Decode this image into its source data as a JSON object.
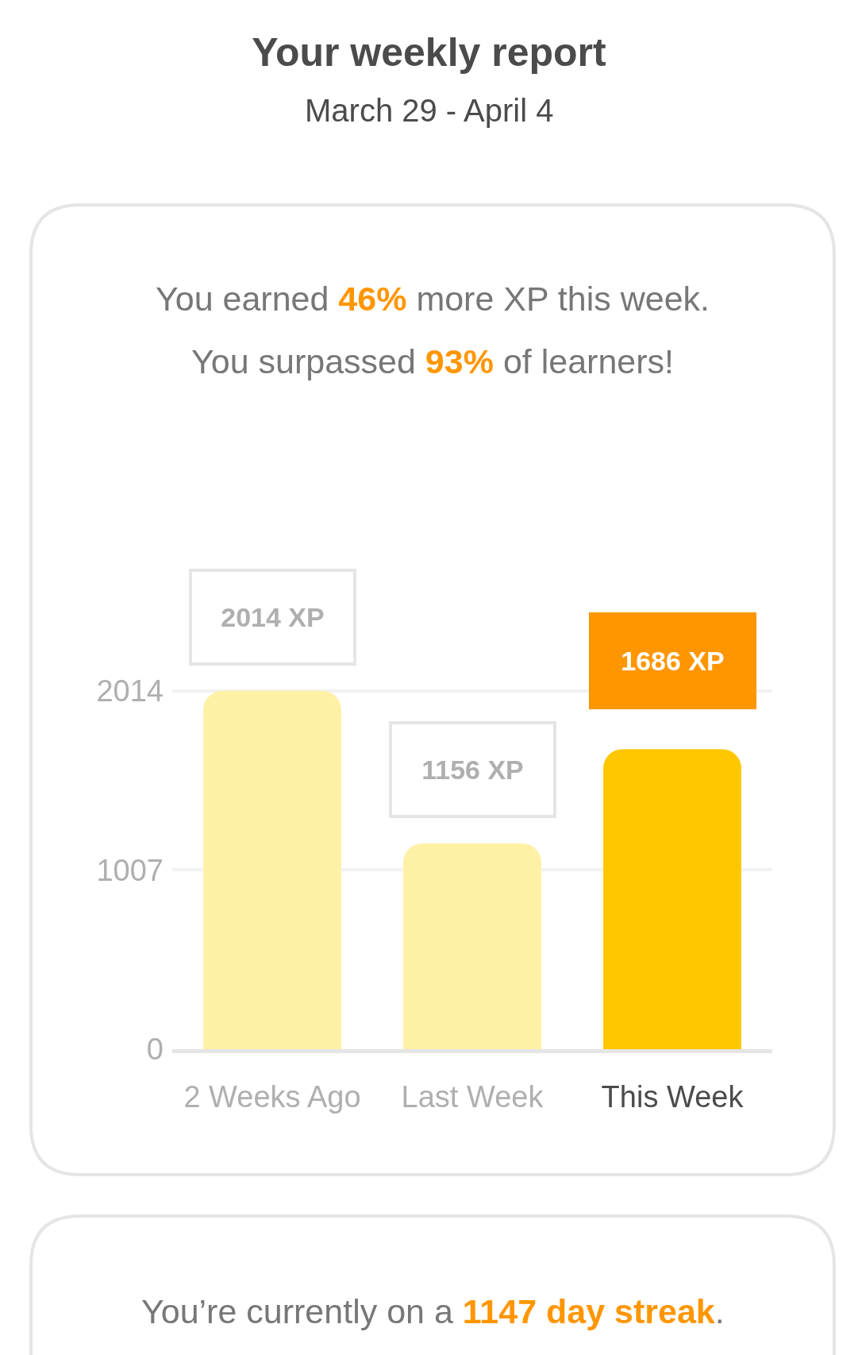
{
  "chart_data": {
    "type": "bar",
    "title": "Your weekly report",
    "subtitle": "March 29 - April 4",
    "categories": [
      "2 Weeks Ago",
      "Last Week",
      "This Week"
    ],
    "values": [
      2014,
      1156,
      1686
    ],
    "colors": [
      "#fef1a6",
      "#fef1a6",
      "#fec700"
    ],
    "value_labels": [
      "2014 XP",
      "1156 XP",
      "1686 XP"
    ],
    "ylim": [
      0,
      2450
    ],
    "yticks": [
      0,
      1007,
      2014
    ],
    "grid": "y",
    "annotations": [
      "You earned 46% more XP this week.",
      "You surpassed 93% of learners!",
      "You’re currently on a 1147 day streak."
    ]
  }
}
